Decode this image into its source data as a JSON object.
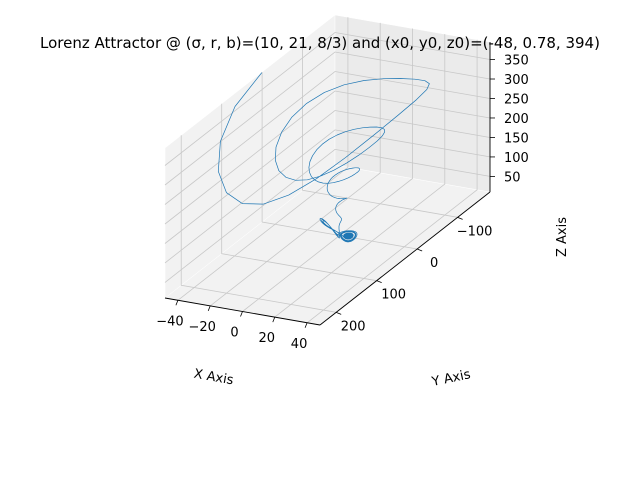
{
  "chart_data": {
    "type": "line",
    "projection": "3d",
    "title": "Lorenz Attractor @ (σ, r, b)=(10, 21, 8/3) and (x0, y0, z0)=(-48, 0.78, 394)",
    "xlabel": "X Axis",
    "ylabel": "Y Axis",
    "zlabel": "Z Axis",
    "x_ticks": [
      "−40",
      "−20",
      "0",
      "20",
      "40"
    ],
    "y_ticks": [
      "−100",
      "0",
      "100",
      "200"
    ],
    "z_ticks": [
      "50",
      "100",
      "150",
      "200",
      "250",
      "300",
      "350"
    ],
    "xlim": [
      -48,
      48
    ],
    "ylim": [
      -180,
      240
    ],
    "zlim": [
      10,
      395
    ],
    "grid": true,
    "line_color": "#1f77b4",
    "parameters": {
      "sigma": 10,
      "r": 21,
      "b": 2.6666667
    },
    "initial_state": [
      -48,
      0.78,
      394
    ]
  }
}
